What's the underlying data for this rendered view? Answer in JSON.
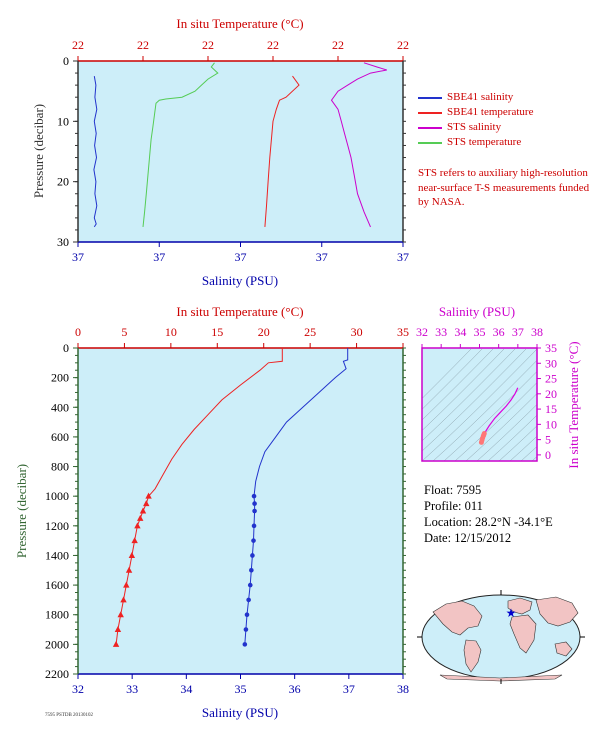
{
  "colors": {
    "plot_bg": "#cdeef9",
    "salinity_axis": "#0000aa",
    "temperature_axis": "#cc0000",
    "pressure_axis": "#333333",
    "ts_axis": "#cc00cc",
    "sbe_salinity": "#2233cc",
    "sbe_temperature": "#ee2222",
    "sts_salinity": "#cc00cc",
    "sts_temperature": "#55cc55",
    "ts_profile": "#dd00dd",
    "ts_deep": "#ff7777",
    "ts_isopycnal": "#8aa0aa",
    "map_land": "#f2c4c4",
    "map_ocean": "#cdeef9",
    "float_marker": "#0000cc"
  },
  "legend": [
    {
      "label": "SBE41 salinity",
      "color": "#2233cc"
    },
    {
      "label": "SBE41 temperature",
      "color": "#ee2222"
    },
    {
      "label": "STS salinity",
      "color": "#cc00cc"
    },
    {
      "label": "STS temperature",
      "color": "#55cc55"
    }
  ],
  "note": "STS refers to auxiliary high-resolution near-surface T-S measurements funded by NASA.",
  "info": {
    "float": "Float:  7595",
    "profile": "Profile:  011",
    "location": "Location:  28.2°N  -34.1°E",
    "date": "Date:  12/15/2012"
  },
  "footer_tiny": "7595 PSTDB 20130102",
  "chart_data": [
    {
      "id": "top",
      "type": "line",
      "title_top": "In situ Temperature (°C)",
      "xlabel_bottom": "Salinity (PSU)",
      "ylabel": "Pressure (decibar)",
      "top_ticks": [
        "22",
        "22",
        "22",
        "22",
        "22",
        "22"
      ],
      "bottom_ticks": [
        "37",
        "37",
        "37",
        "37",
        "37"
      ],
      "yticks": [
        0,
        10,
        20,
        30
      ],
      "ylim": [
        0,
        30
      ],
      "grid": false,
      "series": [
        {
          "name": "SBE41 salinity",
          "color_key": "sbe_salinity",
          "x": [
            0.05,
            0.055,
            0.052,
            0.058,
            0.05,
            0.056,
            0.051,
            0.057,
            0.049,
            0.055,
            0.052,
            0.058,
            0.05,
            0.056,
            0.05
          ],
          "y": [
            2.5,
            4,
            6,
            8,
            10,
            12,
            14,
            16,
            18,
            20,
            22,
            24,
            26,
            27,
            27.5
          ]
        },
        {
          "name": "STS temperature",
          "color_key": "sts_temperature",
          "x": [
            0.42,
            0.41,
            0.43,
            0.4,
            0.38,
            0.36,
            0.32,
            0.27,
            0.25,
            0.24,
            0.235,
            0.23,
            0.225,
            0.22,
            0.215,
            0.21,
            0.205,
            0.2
          ],
          "y": [
            0.3,
            1,
            2,
            3,
            4,
            5,
            6,
            6.3,
            6.5,
            7,
            9,
            11,
            13,
            16,
            19,
            22,
            25,
            27.5
          ]
        },
        {
          "name": "SBE41 temperature",
          "color_key": "sbe_temperature",
          "x": [
            0.66,
            0.68,
            0.64,
            0.62,
            0.61,
            0.6,
            0.595,
            0.59,
            0.585,
            0.58,
            0.575
          ],
          "y": [
            2.5,
            4,
            6,
            6.5,
            8,
            10,
            13,
            16,
            20,
            24,
            27.5
          ]
        },
        {
          "name": "STS salinity",
          "color_key": "sts_salinity",
          "x": [
            0.88,
            0.92,
            0.95,
            0.9,
            0.86,
            0.83,
            0.8,
            0.78,
            0.8,
            0.81,
            0.82,
            0.83,
            0.84,
            0.85,
            0.86,
            0.88,
            0.9
          ],
          "y": [
            0.3,
            1,
            1.5,
            2,
            3,
            4,
            5,
            6.5,
            8,
            10,
            12,
            14,
            16,
            19,
            22,
            25,
            27.5
          ]
        }
      ]
    },
    {
      "id": "bottom",
      "type": "line",
      "title_top": "In situ Temperature (°C)",
      "xlabel_bottom": "Salinity (PSU)",
      "ylabel": "Pressure (decibar)",
      "top_ticks": [
        0,
        5,
        10,
        15,
        20,
        25,
        30,
        35
      ],
      "bottom_ticks": [
        32,
        33,
        34,
        35,
        36,
        37,
        38
      ],
      "yticks": [
        0,
        200,
        400,
        600,
        800,
        1000,
        1200,
        1400,
        1600,
        1800,
        2000,
        2200
      ],
      "xlim_salinity": [
        32,
        38
      ],
      "xlim_temperature": [
        0,
        35
      ],
      "ylim": [
        0,
        2200
      ],
      "grid": false,
      "series": [
        {
          "name": "Temperature",
          "axis": "temperature",
          "marker": "triangle",
          "marker_from": 1000,
          "x": [
            22.0,
            22.0,
            20.5,
            19.6,
            17.5,
            15.5,
            14.0,
            12.5,
            11.2,
            10.1,
            9.2,
            8.3,
            7.6,
            7.35,
            7.0,
            6.7,
            6.4,
            6.1,
            5.8,
            5.5,
            5.2,
            4.9,
            4.6,
            4.3,
            4.1
          ],
          "y": [
            0,
            90,
            100,
            150,
            250,
            350,
            450,
            550,
            650,
            750,
            850,
            950,
            1000,
            1050,
            1100,
            1150,
            1200,
            1300,
            1400,
            1500,
            1600,
            1700,
            1800,
            1900,
            2000
          ]
        },
        {
          "name": "Salinity",
          "axis": "salinity",
          "marker": "circle",
          "marker_from": 1000,
          "x": [
            36.98,
            36.98,
            36.9,
            36.95,
            36.75,
            36.45,
            36.15,
            35.85,
            35.65,
            35.45,
            35.35,
            35.28,
            35.25,
            35.26,
            35.26,
            35.25,
            35.24,
            35.22,
            35.2,
            35.18,
            35.15,
            35.12,
            35.1,
            35.08
          ],
          "y": [
            0,
            80,
            90,
            140,
            200,
            300,
            400,
            500,
            600,
            700,
            800,
            900,
            1000,
            1050,
            1100,
            1200,
            1300,
            1400,
            1500,
            1600,
            1700,
            1800,
            1900,
            2000
          ]
        }
      ]
    },
    {
      "id": "ts",
      "type": "scatter",
      "title_top": "Salinity (PSU)",
      "ylabel_right": "In situ Temperature (°C)",
      "xticks": [
        32,
        33,
        34,
        35,
        36,
        37,
        38
      ],
      "yticks": [
        0,
        5,
        10,
        15,
        20,
        25,
        30,
        35
      ],
      "xlim": [
        32,
        38
      ],
      "ylim": [
        -2,
        35
      ],
      "series": [
        {
          "name": "profile",
          "x": [
            35.15,
            35.2,
            35.3,
            35.5,
            35.8,
            36.1,
            36.4,
            36.65,
            36.85,
            37.0
          ],
          "y": [
            4.5,
            6,
            7.5,
            9.5,
            12,
            14,
            16,
            18,
            20,
            22
          ]
        },
        {
          "name": "deep",
          "x": [
            35.1,
            35.13,
            35.16,
            35.2,
            35.25,
            35.22
          ],
          "y": [
            4.1,
            4.8,
            5.5,
            6.2,
            7,
            6.5
          ]
        }
      ]
    }
  ]
}
